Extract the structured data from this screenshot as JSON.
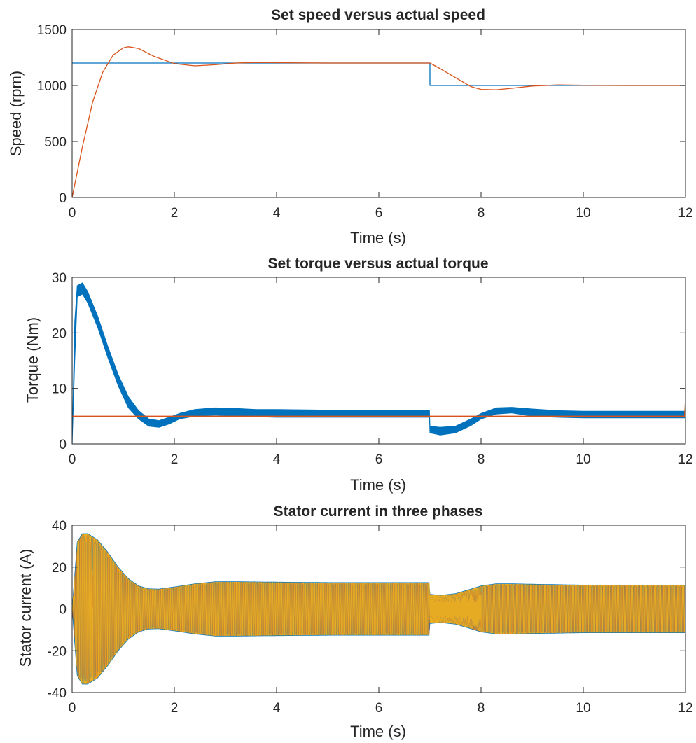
{
  "colors": {
    "series1": "#0072BD",
    "series2": "#D95319",
    "series3": "#EDB120",
    "axis": "#262626"
  },
  "chart_data": [
    {
      "type": "line",
      "title": "Set speed versus actual speed",
      "xlabel": "Time (s)",
      "ylabel": "Speed (rpm)",
      "xlim": [
        0,
        12
      ],
      "ylim": [
        0,
        1500
      ],
      "xticks": [
        0,
        2,
        4,
        6,
        8,
        10,
        12
      ],
      "yticks": [
        0,
        500,
        1000,
        1500
      ],
      "grid": false,
      "series": [
        {
          "color": "#0072BD",
          "x": [
            0,
            7,
            7,
            12
          ],
          "y": [
            1200,
            1200,
            1000,
            1000
          ]
        },
        {
          "color": "#D95319",
          "x": [
            0,
            0.2,
            0.4,
            0.6,
            0.8,
            1.0,
            1.1,
            1.3,
            1.6,
            2.0,
            2.4,
            2.8,
            3.2,
            3.6,
            4.0,
            5.0,
            6.0,
            7.0,
            7.2,
            7.5,
            7.8,
            8.0,
            8.3,
            8.6,
            9.0,
            9.5,
            10.0,
            11.0,
            12.0
          ],
          "y": [
            0,
            450,
            850,
            1120,
            1270,
            1335,
            1345,
            1330,
            1260,
            1195,
            1175,
            1185,
            1200,
            1205,
            1203,
            1200,
            1200,
            1200,
            1150,
            1070,
            990,
            965,
            962,
            975,
            995,
            1005,
            1002,
            1000,
            1000
          ]
        }
      ]
    },
    {
      "type": "line",
      "title": "Set torque versus actual torque",
      "xlabel": "Time (s)",
      "ylabel": "Torque (Nm)",
      "xlim": [
        0,
        12
      ],
      "ylim": [
        0,
        30
      ],
      "xticks": [
        0,
        2,
        4,
        6,
        8,
        10,
        12
      ],
      "yticks": [
        0,
        10,
        20,
        30
      ],
      "grid": false,
      "series": [
        {
          "color": "#0072BD",
          "style": "ripple-band",
          "x": [
            0,
            0.05,
            0.1,
            0.2,
            0.3,
            0.5,
            0.7,
            0.9,
            1.1,
            1.3,
            1.5,
            1.7,
            1.9,
            2.1,
            2.4,
            2.8,
            3.2,
            3.6,
            4.0,
            5.0,
            6.0,
            6.99,
            7.0,
            7.2,
            7.5,
            7.8,
            8.0,
            8.3,
            8.6,
            9.0,
            9.5,
            10.0,
            11.0,
            12.0
          ],
          "upper": [
            0,
            22,
            28.5,
            29,
            27.5,
            23,
            17.5,
            12.5,
            8.5,
            6,
            4.5,
            4.2,
            4.8,
            5.5,
            6.2,
            6.5,
            6.4,
            6.2,
            6.2,
            6.1,
            6.1,
            6.1,
            3.2,
            3.0,
            3.2,
            4.5,
            5.5,
            6.5,
            6.6,
            6.3,
            6.0,
            5.9,
            5.9,
            5.9
          ],
          "lower": [
            0,
            15,
            26.5,
            27,
            25.5,
            21,
            15.5,
            10.5,
            6.5,
            4.5,
            3.2,
            3.0,
            3.6,
            4.5,
            5.0,
            5.2,
            5.0,
            4.9,
            4.8,
            4.8,
            4.8,
            4.8,
            2.0,
            1.6,
            2.0,
            3.3,
            4.5,
            5.4,
            5.6,
            5.0,
            4.8,
            4.7,
            4.7,
            4.7
          ]
        },
        {
          "color": "#D95319",
          "x": [
            0,
            11.98,
            12
          ],
          "y": [
            5,
            5,
            8
          ]
        }
      ]
    },
    {
      "type": "line",
      "title": "Stator current in three phases",
      "xlabel": "Time (s)",
      "ylabel": "Stator current (A)",
      "xlim": [
        0,
        12
      ],
      "ylim": [
        -40,
        40
      ],
      "xticks": [
        0,
        2,
        4,
        6,
        8,
        10,
        12
      ],
      "yticks": [
        -40,
        -20,
        0,
        20,
        40
      ],
      "grid": false,
      "envelope": {
        "x": [
          0,
          0.1,
          0.2,
          0.3,
          0.5,
          0.7,
          0.9,
          1.1,
          1.3,
          1.5,
          1.7,
          2.0,
          2.4,
          2.8,
          3.2,
          4.0,
          5.0,
          6.0,
          6.99,
          7.0,
          7.2,
          7.5,
          7.8,
          8.0,
          8.3,
          8.6,
          9.0,
          9.5,
          10.0,
          11.0,
          12.0
        ],
        "amplitude": [
          0,
          32,
          36,
          36,
          33,
          27,
          20,
          14.5,
          11,
          9.6,
          9.5,
          10.5,
          12,
          13,
          13,
          12.8,
          12.6,
          12.6,
          12.6,
          7,
          6.5,
          7.3,
          9.5,
          11,
          12,
          12,
          11.8,
          11.6,
          11.4,
          11.4,
          11.4
        ]
      },
      "series": [
        {
          "name": "",
          "color": "#0072BD"
        },
        {
          "name": "",
          "color": "#D95319"
        },
        {
          "name": "",
          "color": "#EDB120"
        }
      ]
    }
  ]
}
